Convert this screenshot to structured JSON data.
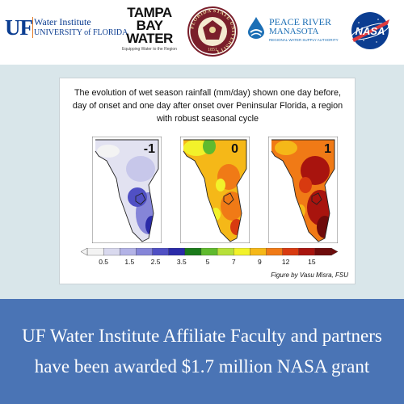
{
  "logos": {
    "uf": {
      "mark": "UF",
      "line1": "Water Institute",
      "line2": "UNIVERSITY of FLORIDA"
    },
    "tampa_bay_water": {
      "line1": "TAMPA",
      "line2": "BAY",
      "line3": "WATER",
      "tagline": "Equipping Water to the Region"
    },
    "fsu": {
      "ring_text": "FLORIDA STATE UNIVERSITY",
      "year": "1851"
    },
    "peace_river": {
      "line1": "PEACE RIVER",
      "line2": "MANASOTA",
      "line3": "REGIONAL WATER SUPPLY AUTHORITY"
    },
    "nasa": {
      "text": "NASA"
    }
  },
  "figure": {
    "title": "The evolution of wet season rainfall (mm/day) shown one day before, day of onset and one day after onset over Peninsular Florida, a region with robust seasonal cycle",
    "panels": [
      {
        "label": "-1"
      },
      {
        "label": "0"
      },
      {
        "label": "1"
      }
    ],
    "colorbar_ticks": [
      "0.5",
      "1.5",
      "2.5",
      "3.5",
      "5",
      "7",
      "9",
      "12",
      "15"
    ],
    "colorbar_colors": [
      "#f3f3f3",
      "#d9d9ee",
      "#b3b3e6",
      "#8585d8",
      "#5050c4",
      "#2a2aa8",
      "#1a7a1a",
      "#5fba2e",
      "#b7e03a",
      "#f2f22a",
      "#f5b818",
      "#f07a16",
      "#d83a10",
      "#a8140e",
      "#6e0b0b"
    ],
    "credit": "Figure by Vasu Misra, FSU"
  },
  "banner": {
    "text": "UF Water Institute Affiliate Faculty and partners have been awarded $1.7 million NASA grant",
    "background": "#4a74b5"
  }
}
